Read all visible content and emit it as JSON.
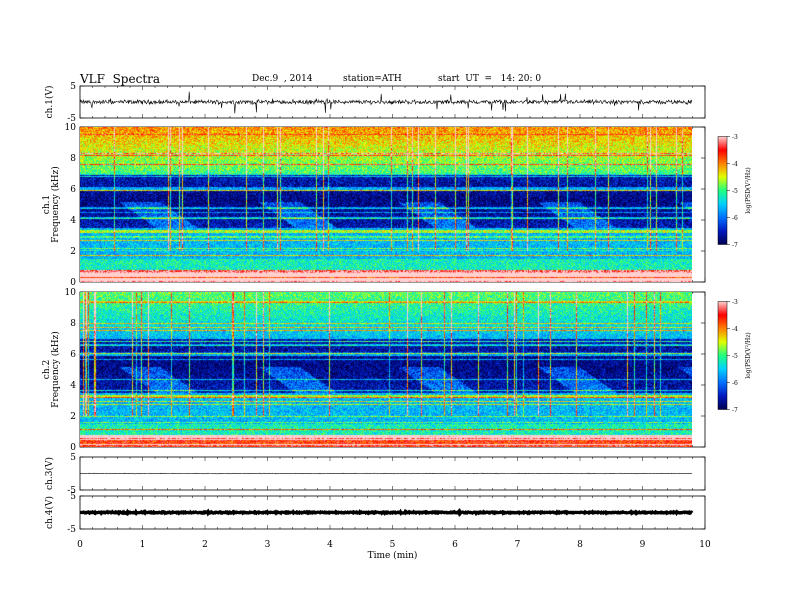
{
  "header": {
    "title": "VLF  Spectra",
    "date": "Dec.9  , 2014",
    "station": "station=ATH",
    "start": "start  UT  =   14: 20: 0"
  },
  "chart_data": {
    "type": "heatmap",
    "xlabel": "Time  (min)",
    "xlim": [
      0,
      10
    ],
    "x_ticks": [
      "0",
      "1",
      "2",
      "3",
      "4",
      "5",
      "6",
      "7",
      "8",
      "9",
      "10"
    ],
    "data_end_min": 9.8,
    "panels": [
      {
        "kind": "waveform",
        "ylabel": "ch.1(V)",
        "ylim": [
          -5,
          5
        ],
        "ticks": [
          "5",
          "-5"
        ],
        "mean": 0.0,
        "noise": 1.0,
        "spikes": true
      },
      {
        "kind": "spectrogram",
        "ylabel_top": "ch.1",
        "ylabel": "Frequency  (kHz)",
        "ylim": [
          0,
          10
        ],
        "ticks": [
          "0",
          "2",
          "4",
          "6",
          "8",
          "10"
        ],
        "colorbar": {
          "label": "log(PSD(V²/Hz)",
          "range": [
            -7,
            -3
          ],
          "ticks": [
            "-3",
            "-4",
            "-5",
            "-6",
            "-7"
          ]
        }
      },
      {
        "kind": "spectrogram",
        "ylabel_top": "ch.2",
        "ylabel": "Frequency  (kHz)",
        "ylim": [
          0,
          10
        ],
        "ticks": [
          "0",
          "2",
          "4",
          "6",
          "8",
          "10"
        ],
        "colorbar": {
          "label": "log(PSD(V²/Hz)",
          "range": [
            -7,
            -3
          ],
          "ticks": [
            "-3",
            "-4",
            "-5",
            "-6",
            "-7"
          ]
        }
      },
      {
        "kind": "waveform",
        "ylabel": "ch.3(V)",
        "ylim": [
          -5,
          5
        ],
        "ticks": [
          "5",
          "-5"
        ],
        "mean": 0.0,
        "noise": 0.15,
        "spikes": false
      },
      {
        "kind": "waveform",
        "ylabel": "ch.4(V)",
        "ylim": [
          -5,
          5
        ],
        "ticks": [
          "5",
          "-5"
        ],
        "mean": 0.0,
        "noise": 0.3,
        "spikes": false,
        "thick": true
      }
    ],
    "colormap": [
      "#000050",
      "#0018c0",
      "#0070ff",
      "#00d0ff",
      "#20ff80",
      "#e0ff00",
      "#ff8000",
      "#ff0000",
      "#ffd0d0"
    ]
  }
}
